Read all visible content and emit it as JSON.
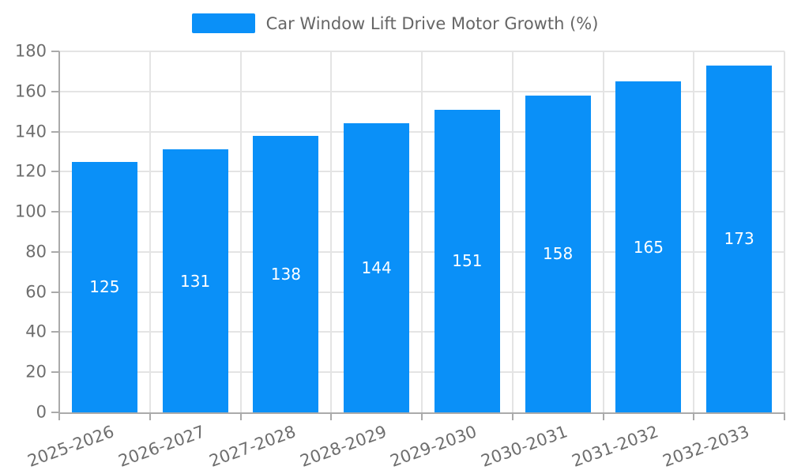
{
  "legend": {
    "label": "Car Window Lift Drive Motor Growth (%)"
  },
  "chart_data": {
    "type": "bar",
    "title": "Car Window Lift Drive Motor Growth (%)",
    "categories": [
      "2025-2026",
      "2026-2027",
      "2027-2028",
      "2028-2029",
      "2029-2030",
      "2030-2031",
      "2031-2032",
      "2032-2033"
    ],
    "values": [
      125,
      131,
      138,
      144,
      151,
      158,
      165,
      173
    ],
    "xlabel": "",
    "ylabel": "",
    "ylim": [
      0,
      180
    ],
    "yticks": [
      0,
      20,
      40,
      60,
      80,
      100,
      120,
      140,
      160,
      180
    ],
    "grid": true,
    "legend_position": "top-center",
    "bar_label_position": "inside-center",
    "x_label_rotation_deg": -20,
    "colors": {
      "bar": "#0a90f8",
      "bar_value_label": "#ffffff",
      "axis_text": "#6e6e6e",
      "legend_text": "#666666",
      "grid_line": "#e4e4e4",
      "axis_line": "#aaaaaa",
      "background": "#ffffff"
    }
  }
}
